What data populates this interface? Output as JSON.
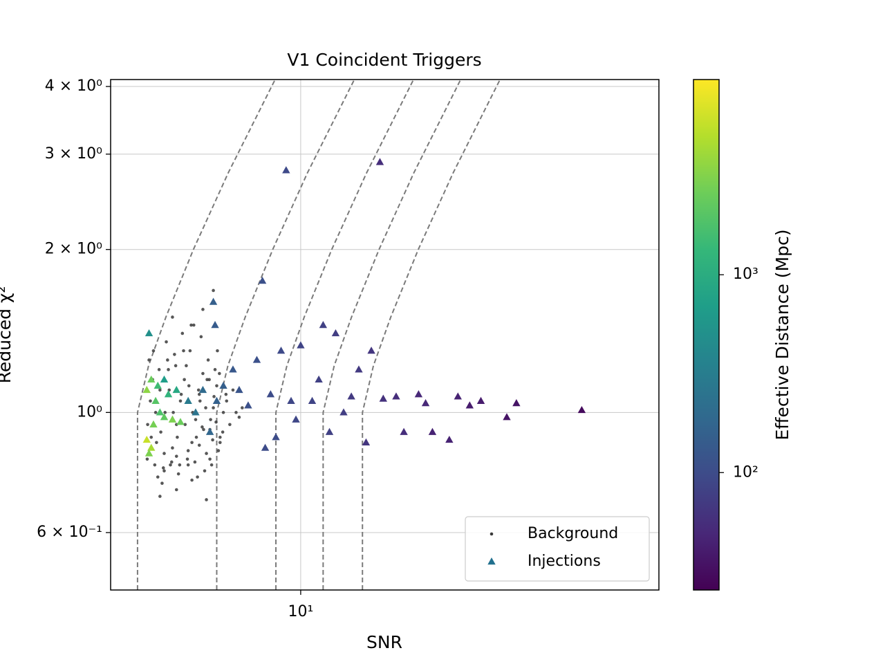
{
  "chart_data": {
    "type": "scatter",
    "title": "V1 Coincident Triggers",
    "x_label": "SNR",
    "y_label": "Reduced χ²",
    "x_scale": "log",
    "y_scale": "log",
    "xlim": [
      4.46,
      45.8
    ],
    "ylim": [
      0.47,
      4.12
    ],
    "xticks": [
      {
        "value": 10,
        "label": "10¹"
      }
    ],
    "yticks": [
      {
        "value": 0.6,
        "label": "6 × 10⁻¹"
      },
      {
        "value": 1,
        "label": "10⁰"
      },
      {
        "value": 2,
        "label": "2 × 10⁰"
      },
      {
        "value": 3,
        "label": "3 × 10⁰"
      },
      {
        "value": 4,
        "label": "4 × 10⁰"
      }
    ],
    "grid": true,
    "legend": "lower right",
    "series": [
      {
        "name": "Background",
        "marker": "dot",
        "color": "#3a3a3a",
        "x": [
          5.21,
          5.3,
          5.4,
          5.5,
          5.6,
          5.7,
          5.8,
          5.9,
          6.0,
          6.1,
          6.2,
          6.3,
          6.4,
          6.5,
          6.6,
          6.7,
          6.8,
          6.9,
          7.0,
          7.1,
          5.25,
          5.35,
          5.45,
          5.55,
          5.65,
          5.75,
          5.85,
          5.95,
          6.05,
          6.15,
          6.25,
          6.35,
          6.45,
          6.55,
          6.65,
          6.75,
          6.85,
          6.95,
          7.05,
          7.2,
          7.3,
          7.4,
          7.5,
          7.6,
          7.7,
          7.8,
          5.5,
          5.9,
          6.3,
          6.7,
          5.3,
          5.6,
          5.9,
          6.2,
          6.5,
          6.8,
          7.1,
          5.8,
          6.6,
          6.9,
          5.22,
          5.28,
          5.33,
          5.42,
          5.52,
          5.62,
          5.72,
          5.82,
          5.92,
          6.02,
          6.12,
          6.22,
          6.32,
          6.42,
          6.52,
          6.62,
          6.72,
          6.82,
          6.92,
          7.02,
          5.38,
          5.48,
          5.58,
          5.68,
          5.78,
          5.88,
          5.98,
          6.08,
          6.18,
          6.28,
          6.38,
          6.48,
          6.58,
          6.68,
          6.78,
          6.88,
          6.98,
          7.08,
          7.18,
          7.28
        ],
        "y": [
          0.82,
          0.9,
          1.0,
          1.1,
          0.78,
          1.2,
          0.86,
          0.95,
          1.05,
          1.15,
          0.8,
          0.88,
          0.97,
          1.08,
          1.18,
          0.84,
          0.93,
          1.02,
          1.12,
          0.9,
          1.25,
          1.3,
          0.76,
          0.74,
          1.35,
          0.8,
          1.28,
          0.77,
          1.4,
          1.22,
          1.3,
          1.45,
          0.76,
          1.38,
          0.78,
          1.25,
          0.8,
          1.2,
          0.85,
          1.0,
          1.05,
          0.95,
          1.1,
          1.0,
          0.98,
          1.02,
          0.7,
          0.72,
          0.75,
          0.69,
          0.86,
          0.84,
          0.83,
          0.85,
          0.87,
          0.82,
          0.88,
          1.5,
          1.55,
          1.68,
          0.95,
          1.05,
          1.15,
          0.88,
          0.92,
          1.0,
          1.1,
          1.0,
          0.9,
          1.08,
          0.95,
          1.12,
          1.0,
          0.9,
          1.05,
          0.93,
          1.15,
          0.97,
          1.07,
          1.3,
          0.8,
          1.2,
          0.79,
          1.25,
          0.81,
          1.22,
          0.8,
          1.3,
          0.82,
          1.45,
          0.81,
          1.1,
          0.94,
          1.02,
          1.15,
          0.89,
          0.96,
          1.18,
          0.92,
          1.08
        ]
      },
      {
        "name": "Injections",
        "marker": "triangle",
        "color": "#21708e",
        "x": [
          5.2,
          5.3,
          5.25,
          5.2,
          5.3,
          5.4,
          5.5,
          5.6,
          5.35,
          5.45,
          5.7,
          5.8,
          5.9,
          6.0,
          5.25,
          5.6,
          6.2,
          6.4,
          6.6,
          6.8,
          7.0,
          7.2,
          6.9,
          6.95,
          7.5,
          7.7,
          8.0,
          8.3,
          8.5,
          8.6,
          8.8,
          9.0,
          9.2,
          9.4,
          9.6,
          9.8,
          10.0,
          10.5,
          10.8,
          11.0,
          11.3,
          11.6,
          12.0,
          12.4,
          12.8,
          13.2,
          13.5,
          14.0,
          14.2,
          15.0,
          15.5,
          16.5,
          17.0,
          17.5,
          18.8,
          19.5,
          20.5,
          21.5,
          24.0,
          25.0,
          33.0
        ],
        "y": [
          0.89,
          0.86,
          0.84,
          1.1,
          1.15,
          1.05,
          1.0,
          0.98,
          0.95,
          1.12,
          1.08,
          0.97,
          1.1,
          0.96,
          1.4,
          1.15,
          1.05,
          1.0,
          1.1,
          0.92,
          1.05,
          1.12,
          1.6,
          1.45,
          1.2,
          1.1,
          1.03,
          1.25,
          1.75,
          0.86,
          1.08,
          0.9,
          1.3,
          2.8,
          1.05,
          0.97,
          1.33,
          1.05,
          1.15,
          1.45,
          0.92,
          1.4,
          1.0,
          1.07,
          1.2,
          0.88,
          1.3,
          2.9,
          1.06,
          1.07,
          0.92,
          1.08,
          1.04,
          0.92,
          0.89,
          1.07,
          1.03,
          1.05,
          0.98,
          1.04,
          1.01
        ],
        "c": [
          6000,
          4500,
          3000,
          3500,
          2500,
          2000,
          1800,
          2200,
          2800,
          1500,
          1200,
          3000,
          900,
          2500,
          500,
          700,
          300,
          250,
          200,
          180,
          160,
          150,
          150,
          140,
          130,
          120,
          110,
          110,
          110,
          100,
          100,
          100,
          95,
          95,
          90,
          90,
          85,
          85,
          80,
          80,
          80,
          75,
          75,
          70,
          70,
          65,
          65,
          55,
          60,
          55,
          55,
          50,
          50,
          45,
          45,
          45,
          40,
          40,
          35,
          35,
          30
        ]
      }
    ],
    "curves": [
      {
        "x": [
          5,
          5,
          5.24,
          5.64,
          6.34,
          7.35,
          8.97
        ],
        "y": [
          0.47,
          1,
          1.22,
          1.5,
          2,
          2.77,
          4.12
        ]
      },
      {
        "x": [
          7,
          7,
          7.34,
          7.9,
          8.88,
          10.29,
          12.56
        ],
        "y": [
          0.47,
          1,
          1.22,
          1.5,
          2,
          2.77,
          4.12
        ]
      },
      {
        "x": [
          9,
          9,
          9.43,
          10.15,
          11.41,
          13.23,
          16.15
        ],
        "y": [
          0.47,
          1,
          1.22,
          1.5,
          2,
          2.77,
          4.12
        ]
      },
      {
        "x": [
          11,
          11,
          11.53,
          12.41,
          13.95,
          16.17,
          19.73
        ],
        "y": [
          0.47,
          1,
          1.22,
          1.5,
          2,
          2.77,
          4.12
        ]
      },
      {
        "x": [
          13,
          13,
          13.62,
          14.66,
          16.48,
          19.11,
          23.32
        ],
        "y": [
          0.47,
          1,
          1.22,
          1.5,
          2,
          2.77,
          4.12
        ]
      }
    ],
    "colorbar": {
      "label": "Effective Distance (Mpc)",
      "scale": "log",
      "colormap": "viridis",
      "lim": [
        25.5,
        9700
      ],
      "ticks": [
        {
          "value": 100,
          "label": "10²"
        },
        {
          "value": 1000,
          "label": "10³"
        }
      ]
    }
  }
}
